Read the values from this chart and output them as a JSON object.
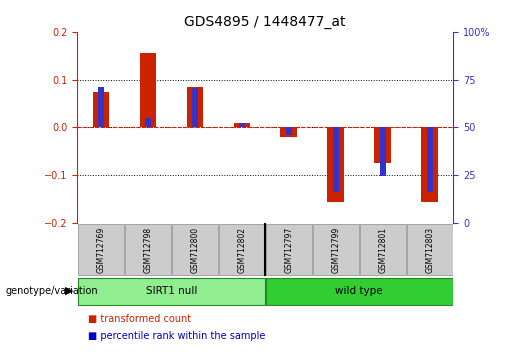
{
  "title": "GDS4895 / 1448477_at",
  "samples": [
    "GSM712769",
    "GSM712798",
    "GSM712800",
    "GSM712802",
    "GSM712797",
    "GSM712799",
    "GSM712801",
    "GSM712803"
  ],
  "red_bars": [
    0.075,
    0.155,
    0.085,
    0.01,
    -0.02,
    -0.155,
    -0.075,
    -0.155
  ],
  "blue_bars": [
    0.085,
    0.02,
    0.083,
    0.01,
    -0.015,
    -0.135,
    -0.102,
    -0.135
  ],
  "ylim": [
    -0.2,
    0.2
  ],
  "right_ylim": [
    0,
    100
  ],
  "right_yticks": [
    0,
    25,
    50,
    75,
    100
  ],
  "right_yticklabels": [
    "0",
    "25",
    "50",
    "75",
    "100%"
  ],
  "left_yticks": [
    -0.2,
    -0.1,
    0.0,
    0.1,
    0.2
  ],
  "dotted_lines": [
    0.1,
    0.0,
    -0.1
  ],
  "groups": [
    {
      "label": "SIRT1 null",
      "start": 0,
      "end": 3,
      "color": "#90EE90"
    },
    {
      "label": "wild type",
      "start": 4,
      "end": 7,
      "color": "#32CD32"
    }
  ],
  "group_label": "genotype/variation",
  "legend_items": [
    {
      "label": "transformed count",
      "color": "#cc2200"
    },
    {
      "label": "percentile rank within the sample",
      "color": "#0000cc"
    }
  ],
  "red_color": "#cc2200",
  "blue_color": "#3333cc",
  "bg_color": "#ffffff"
}
